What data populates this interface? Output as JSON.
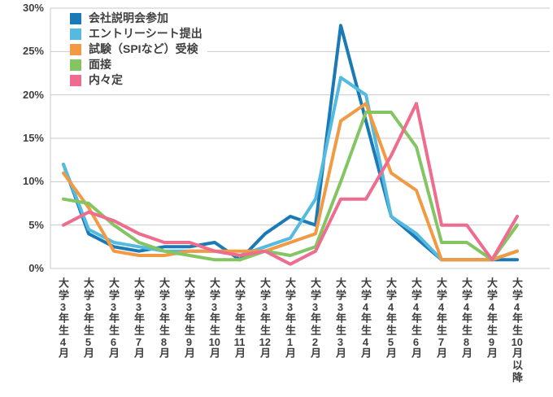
{
  "chart_data": {
    "type": "line",
    "title": "",
    "xlabel": "",
    "ylabel": "",
    "ylim": [
      0,
      30
    ],
    "y_tick_step": 5,
    "y_ticks": [
      "0%",
      "5%",
      "10%",
      "15%",
      "20%",
      "25%",
      "30%"
    ],
    "grid": true,
    "legend_position": "top-left",
    "categories": [
      "大学3年生4月",
      "大学3年生5月",
      "大学3年生6月",
      "大学3年生7月",
      "大学3年生8月",
      "大学3年生9月",
      "大学3年生10月",
      "大学3年生11月",
      "大学3年生12月",
      "大学3年生1月",
      "大学3年生2月",
      "大学3年生3月",
      "大学4年生4月",
      "大学4年生5月",
      "大学4年生6月",
      "大学4年生7月",
      "大学4年生8月",
      "大学4年生9月",
      "大学4年生10月以降"
    ],
    "series": [
      {
        "name": "会社説明会参加",
        "color": "#1a7ab8",
        "values": [
          12,
          4,
          2.5,
          2,
          2.5,
          2.5,
          3,
          1,
          4,
          6,
          5,
          28,
          17,
          6,
          3.5,
          1,
          1,
          1,
          1
        ]
      },
      {
        "name": "エントリーシート提出",
        "color": "#55badf",
        "values": [
          12,
          4.5,
          3,
          2.5,
          2,
          2,
          2,
          1.5,
          2.5,
          3.5,
          8,
          22,
          20,
          6,
          4,
          1,
          1,
          1,
          2
        ]
      },
      {
        "name": "試験（SPIなど）受検",
        "color": "#f29a43",
        "values": [
          11,
          7,
          2,
          1.5,
          1.5,
          2,
          2,
          2,
          2,
          3,
          4,
          17,
          19,
          11,
          9,
          1,
          1,
          1,
          2
        ]
      },
      {
        "name": "面接",
        "color": "#84c563",
        "values": [
          8,
          7.5,
          5,
          3,
          2,
          1.5,
          1,
          1,
          2,
          1.5,
          2.5,
          10,
          18,
          18,
          14,
          3,
          3,
          1,
          5
        ]
      },
      {
        "name": "内々定",
        "color": "#ee6d8e",
        "values": [
          5,
          6.5,
          5.5,
          4,
          3,
          3,
          2,
          1.5,
          2,
          0.5,
          2,
          8,
          8,
          13,
          19,
          5,
          5,
          1,
          6
        ]
      }
    ],
    "colors": {
      "grid": "#c9c9c9",
      "text": "#3f3f3f",
      "background": "#ffffff"
    }
  }
}
